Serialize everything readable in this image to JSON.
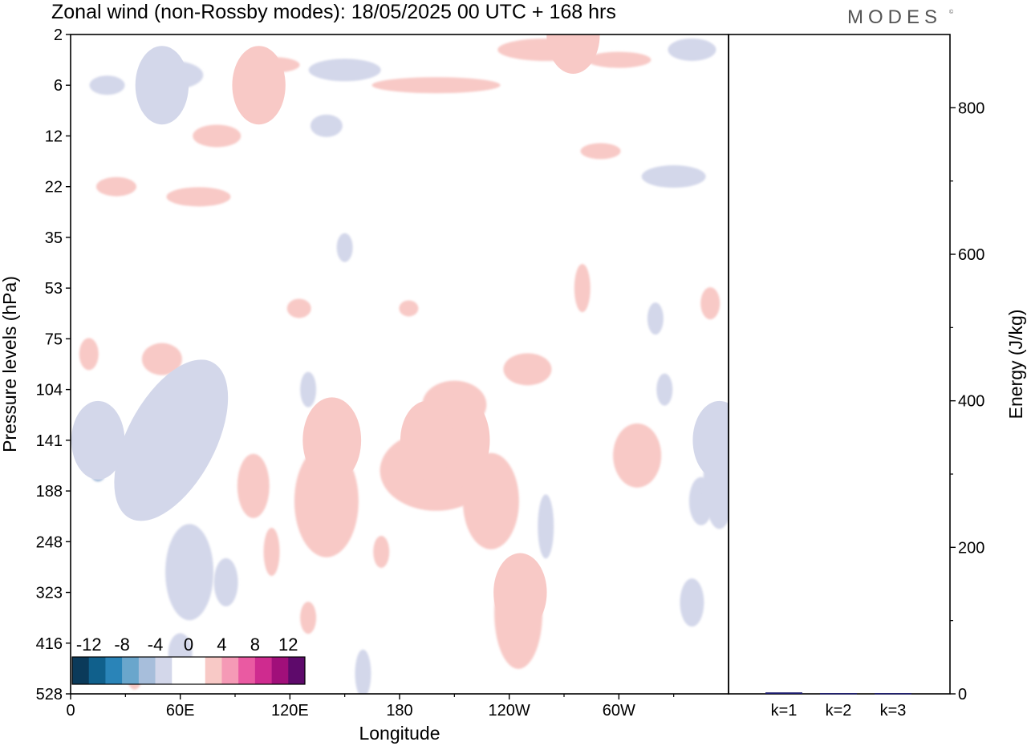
{
  "title": "Zonal wind (non-Rossby modes):  18/05/2025  00 UTC  + 168 hrs",
  "logo": "MODES",
  "logo_mark": "©",
  "chart_data": [
    {
      "type": "heatmap",
      "title": "Zonal wind (non-Rossby modes):  18/05/2025  00 UTC  + 168 hrs",
      "xlabel": "Longitude",
      "ylabel": "Pressure levels (hPa)",
      "x_ticks": [
        "0",
        "60E",
        "120E",
        "180",
        "120W",
        "60W"
      ],
      "y_ticks": [
        "2",
        "6",
        "12",
        "22",
        "35",
        "53",
        "75",
        "104",
        "141",
        "188",
        "248",
        "323",
        "416",
        "528"
      ],
      "colorbar": {
        "labels": [
          "-12",
          "-8",
          "-4",
          "0",
          "4",
          "8",
          "12"
        ],
        "colors": [
          "#0b3a5a",
          "#10608c",
          "#2a84b8",
          "#6aa6cc",
          "#a7bedb",
          "#d3d7ea",
          "#ffffff",
          "#ffffff",
          "#f8c9c6",
          "#f59ab6",
          "#ea5aa2",
          "#cf2b8f",
          "#a10f7a",
          "#5e0a6b"
        ]
      },
      "features": [
        {
          "lon": 55,
          "level": "141",
          "value": -14
        },
        {
          "lon": 15,
          "level": "141",
          "value": -6
        },
        {
          "lon": 143,
          "level": "141",
          "value": 7
        },
        {
          "lon": 212,
          "level": "141",
          "value": 8
        },
        {
          "lon": 195,
          "level": "141",
          "value": 6
        },
        {
          "lon": 246,
          "level": "323",
          "value": 6
        },
        {
          "lon": 355,
          "level": "141",
          "value": -6
        },
        {
          "lon": 103,
          "level": "6",
          "value": 6
        },
        {
          "lon": 50,
          "level": "6",
          "value": -6
        },
        {
          "lon": 275,
          "level": "2",
          "value": 6
        }
      ]
    },
    {
      "type": "bar",
      "categories": [
        "k=1",
        "k=2",
        "k=3"
      ],
      "values": [
        2,
        1,
        1
      ],
      "ylabel": "Energy (J/kg)",
      "ylim": [
        0,
        900
      ],
      "y_ticks": [
        "0",
        "200",
        "400",
        "600",
        "800"
      ],
      "bar_color": "#1a1a6e"
    }
  ]
}
